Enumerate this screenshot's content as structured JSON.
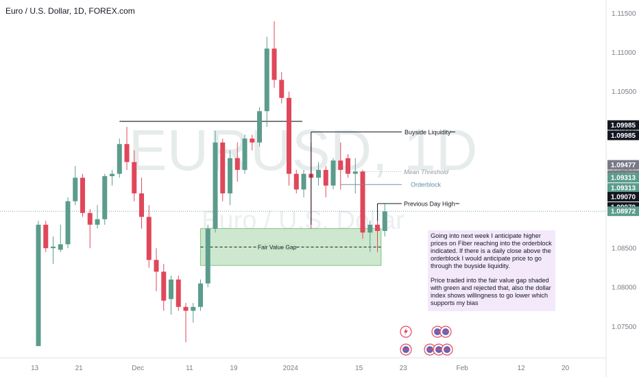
{
  "header": {
    "title": "Euro / U.S. Dollar, 1D, FOREX.com"
  },
  "watermark": {
    "symbol": "EURUSD, 1D",
    "name": "Euro / U.S. Dollar"
  },
  "note": {
    "p1": "Going into next week I anticipate higher prices on Fiber reaching into the orderblock indicated. If there is a daily close above the orderblock I would anticipate price to go through the buyside liquidity.",
    "p2": "Price traded into the fair value gap shaded with green and rejected that, also the dollar index shows willingness to go lower which supports my bias"
  },
  "colors": {
    "up": "#5b9c8c",
    "down": "#e0475a",
    "fvg_fill": "#c8e6c9",
    "fvg_border": "#66bb6a",
    "note_bg": "#f3e9fb",
    "axis_text": "#787b86"
  },
  "chart_data": {
    "type": "candlestick",
    "title": "Euro / U.S. Dollar, 1D, FOREX.com",
    "ylim": [
      1.071,
      1.116
    ],
    "y_ticks": [
      "1.11500",
      "1.11000",
      "1.10500",
      "1.10000",
      "1.09500",
      "1.09000",
      "1.08500",
      "1.08000",
      "1.07500"
    ],
    "x_ticks": [
      {
        "label": "13",
        "i": -0.5
      },
      {
        "label": "21",
        "i": 5.5
      },
      {
        "label": "Dec",
        "i": 13.5
      },
      {
        "label": "11",
        "i": 20.5
      },
      {
        "label": "19",
        "i": 26.5
      },
      {
        "label": "2024",
        "i": 34.2
      },
      {
        "label": "15",
        "i": 43.5
      },
      {
        "label": "23",
        "i": 49.5
      },
      {
        "label": "Feb",
        "i": 57.5
      },
      {
        "label": "12",
        "i": 65.5
      },
      {
        "label": "20",
        "i": 71.5
      }
    ],
    "candles": [
      [
        1.0725,
        1.0885,
        1.0725,
        1.088
      ],
      [
        1.088,
        1.0885,
        1.0845,
        1.085
      ],
      [
        1.085,
        1.0865,
        1.083,
        1.0852
      ],
      [
        1.0848,
        1.088,
        1.0845,
        1.0855
      ],
      [
        1.0855,
        1.0915,
        1.085,
        1.091
      ],
      [
        1.091,
        1.0955,
        1.0905,
        1.094
      ],
      [
        1.094,
        1.0945,
        1.089,
        1.0895
      ],
      [
        1.0895,
        1.09,
        1.085,
        1.088
      ],
      [
        1.088,
        1.0905,
        1.0875,
        1.0887
      ],
      [
        1.0887,
        1.0945,
        1.088,
        1.0942
      ],
      [
        1.0942,
        1.095,
        1.093,
        1.0945
      ],
      [
        1.0945,
        1.099,
        1.094,
        1.0983
      ],
      [
        1.0983,
        1.1005,
        1.095,
        1.096
      ],
      [
        1.096,
        1.0975,
        1.091,
        1.092
      ],
      [
        1.092,
        1.094,
        1.0875,
        1.089
      ],
      [
        1.089,
        1.0905,
        1.0825,
        1.0835
      ],
      [
        1.0835,
        1.085,
        1.0795,
        1.082
      ],
      [
        1.082,
        1.083,
        1.077,
        1.0783
      ],
      [
        1.0785,
        1.0815,
        1.0765,
        1.081
      ],
      [
        1.081,
        1.0815,
        1.077,
        1.0775
      ],
      [
        1.0775,
        1.078,
        1.073,
        1.077
      ],
      [
        1.077,
        1.078,
        1.0755,
        1.0775
      ],
      [
        1.0775,
        1.081,
        1.077,
        1.0805
      ],
      [
        1.0805,
        1.088,
        1.08,
        1.0875
      ],
      [
        1.0875,
        1.1,
        1.087,
        1.0985
      ],
      [
        1.0985,
        1.099,
        1.091,
        1.092
      ],
      [
        1.092,
        1.0975,
        1.0905,
        1.0965
      ],
      [
        1.0965,
        1.0985,
        1.0935,
        1.095
      ],
      [
        1.095,
        1.0995,
        1.0945,
        1.099
      ],
      [
        1.099,
        1.0995,
        1.0975,
        1.0985
      ],
      [
        1.0985,
        1.103,
        1.098,
        1.1025
      ],
      [
        1.1025,
        1.112,
        1.1005,
        1.1105
      ],
      [
        1.1105,
        1.114,
        1.1055,
        1.1065
      ],
      [
        1.1065,
        1.1075,
        1.1035,
        1.1042
      ],
      [
        1.1042,
        1.105,
        1.093,
        1.0945
      ],
      [
        1.0945,
        1.095,
        1.092,
        1.0925
      ],
      [
        1.0925,
        1.095,
        1.0915,
        1.0945
      ],
      [
        1.0945,
        1.0985,
        1.0875,
        1.094
      ],
      [
        1.094,
        1.096,
        1.093,
        1.095
      ],
      [
        1.095,
        1.0955,
        1.0915,
        1.093
      ],
      [
        1.093,
        1.0965,
        1.0925,
        1.0962
      ],
      [
        1.0962,
        1.0985,
        1.0925,
        1.095
      ],
      [
        1.0965,
        1.097,
        1.094,
        1.0945
      ],
      [
        1.0945,
        1.0965,
        1.092,
        1.0948
      ],
      [
        1.0948,
        1.095,
        1.0862,
        1.087
      ],
      [
        1.087,
        1.0885,
        1.0845,
        1.088
      ],
      [
        1.088,
        1.089,
        1.0845,
        1.0872
      ],
      [
        1.0872,
        1.0907,
        1.0865,
        1.0897
      ]
    ],
    "price_labels": [
      {
        "value": 1.09985,
        "text": "1.09985",
        "style": "black"
      },
      {
        "value": 1.09477,
        "text": "1.09477",
        "style": "gray"
      },
      {
        "value": 1.09313,
        "text": "1.09313",
        "style": "teal"
      },
      {
        "value": 1.0907,
        "text": "1.09070",
        "style": "black"
      },
      {
        "value": 1.08972,
        "text": "1.08972",
        "style": "current"
      }
    ],
    "annotations": {
      "buyside": {
        "label": "Buyside Liquidity",
        "price": 1.09985,
        "from_i": 37,
        "to_i": 49.3
      },
      "mean_threshold": {
        "label": "Mean Threshold",
        "price": 1.09477,
        "from_i": 41,
        "to_i": 49.3
      },
      "orderblock": {
        "label": "Orderblock",
        "price": 1.09313,
        "from_i": 41,
        "to_i": 49.3
      },
      "prev_day_high": {
        "label": "Previous Day High",
        "price": 1.0907,
        "from_i": 46,
        "to_i": 49.3
      },
      "old_high_line": {
        "price": 1.1012,
        "from_i": 11,
        "to_i": 35.8
      },
      "fvg": {
        "label": "Fair Value Gap",
        "top": 1.0875,
        "bottom": 1.0828,
        "from_i": 22,
        "to_i": 46.5
      }
    }
  }
}
